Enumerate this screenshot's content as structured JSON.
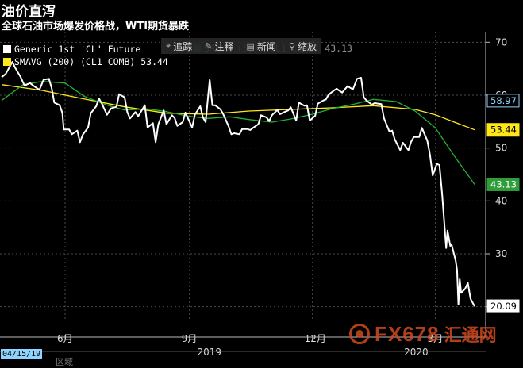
{
  "header": {
    "title": "油价直泻",
    "subtitle": "全球石油市场爆发价格战，WTI期货暴跌"
  },
  "toolbar": {
    "items": [
      {
        "icon": "crosshair-icon",
        "glyph": "⌖",
        "label": "追踪"
      },
      {
        "icon": "annotate-icon",
        "glyph": "✎",
        "label": "注释"
      },
      {
        "icon": "news-icon",
        "glyph": "▤",
        "label": "新闻"
      },
      {
        "icon": "zoom-icon",
        "glyph": "⚲",
        "label": "缩放"
      }
    ]
  },
  "legend": {
    "series1": "Generic 1st 'CL' Future",
    "series2": "SMAVG (200) (CL1 COMB) 53.44",
    "series3": "SMAVG (50) (CL1 COMB) 43.13"
  },
  "date_tag": "04/15/19",
  "bottom_text": "区域",
  "watermark": {
    "text": "FX678",
    "cn": "汇通网"
  },
  "colors": {
    "price": "#ffffff",
    "sma50": "#22b033",
    "sma200": "#ffe81a",
    "tag_price_bg": "#8fd4ff",
    "tag_yellow_bg": "#ffe81a",
    "tag_green_bg": "#2f9e3a",
    "tag_white_bg": "#ffffff",
    "grid": "#4a4a4a"
  },
  "chart_data": {
    "type": "line",
    "title": "油价直泻",
    "subtitle": "全球石油市场爆发价格战，WTI期货暴跌",
    "ylim": [
      18,
      72
    ],
    "y_ticks": [
      20,
      30,
      40,
      50,
      60,
      70
    ],
    "x_range": [
      "2019-04-15",
      "2020-03-20"
    ],
    "x_ticks": [
      {
        "date": "2019-06-01",
        "label": "6月"
      },
      {
        "date": "2019-09-01",
        "label": "9月"
      },
      {
        "date": "2019-12-01",
        "label": "12月"
      },
      {
        "date": "2020-03-01",
        "label": "3月"
      }
    ],
    "year_labels": [
      {
        "date": "2019-09-15",
        "label": "2019"
      },
      {
        "date": "2020-02-15",
        "label": "2020"
      }
    ],
    "grid": true,
    "last_value_labels": [
      {
        "value": 58.97,
        "text": "58.97",
        "style": "ref"
      },
      {
        "value": 53.44,
        "text": "53.44",
        "style": "yellow"
      },
      {
        "value": 43.13,
        "text": "43.13",
        "style": "green"
      },
      {
        "value": 20.09,
        "text": "20.09",
        "style": "white"
      }
    ],
    "series": [
      {
        "name": "Generic 1st 'CL' Future",
        "color": "#ffffff",
        "points": [
          [
            "2019-04-15",
            63.4
          ],
          [
            "2019-04-18",
            64.0
          ],
          [
            "2019-04-23",
            66.3
          ],
          [
            "2019-04-25",
            65.2
          ],
          [
            "2019-04-29",
            63.5
          ],
          [
            "2019-05-02",
            61.8
          ],
          [
            "2019-05-06",
            62.3
          ],
          [
            "2019-05-09",
            61.7
          ],
          [
            "2019-05-13",
            61.0
          ],
          [
            "2019-05-16",
            62.9
          ],
          [
            "2019-05-20",
            63.1
          ],
          [
            "2019-05-22",
            61.4
          ],
          [
            "2019-05-24",
            58.6
          ],
          [
            "2019-05-28",
            58.1
          ],
          [
            "2019-05-30",
            56.6
          ],
          [
            "2019-05-31",
            53.5
          ],
          [
            "2019-06-04",
            53.5
          ],
          [
            "2019-06-06",
            52.6
          ],
          [
            "2019-06-10",
            53.3
          ],
          [
            "2019-06-12",
            51.1
          ],
          [
            "2019-06-14",
            52.5
          ],
          [
            "2019-06-18",
            53.9
          ],
          [
            "2019-06-20",
            56.6
          ],
          [
            "2019-06-24",
            57.9
          ],
          [
            "2019-06-26",
            59.4
          ],
          [
            "2019-06-28",
            58.5
          ],
          [
            "2019-07-02",
            56.3
          ],
          [
            "2019-07-05",
            57.5
          ],
          [
            "2019-07-09",
            57.8
          ],
          [
            "2019-07-11",
            60.2
          ],
          [
            "2019-07-15",
            59.6
          ],
          [
            "2019-07-17",
            56.8
          ],
          [
            "2019-07-19",
            55.6
          ],
          [
            "2019-07-23",
            56.8
          ],
          [
            "2019-07-25",
            56.0
          ],
          [
            "2019-07-30",
            58.1
          ],
          [
            "2019-08-01",
            53.9
          ],
          [
            "2019-08-05",
            54.7
          ],
          [
            "2019-08-07",
            51.1
          ],
          [
            "2019-08-09",
            54.5
          ],
          [
            "2019-08-13",
            57.1
          ],
          [
            "2019-08-15",
            54.5
          ],
          [
            "2019-08-19",
            56.2
          ],
          [
            "2019-08-21",
            55.7
          ],
          [
            "2019-08-23",
            54.2
          ],
          [
            "2019-08-27",
            54.9
          ],
          [
            "2019-08-29",
            56.7
          ],
          [
            "2019-09-03",
            53.9
          ],
          [
            "2019-09-05",
            56.3
          ],
          [
            "2019-09-09",
            57.9
          ],
          [
            "2019-09-11",
            55.8
          ],
          [
            "2019-09-13",
            54.9
          ],
          [
            "2019-09-16",
            62.9
          ],
          [
            "2019-09-18",
            58.1
          ],
          [
            "2019-09-20",
            58.1
          ],
          [
            "2019-09-24",
            57.3
          ],
          [
            "2019-09-26",
            56.4
          ],
          [
            "2019-09-30",
            54.1
          ],
          [
            "2019-10-02",
            52.6
          ],
          [
            "2019-10-04",
            52.8
          ],
          [
            "2019-10-08",
            52.6
          ],
          [
            "2019-10-10",
            53.6
          ],
          [
            "2019-10-14",
            53.6
          ],
          [
            "2019-10-16",
            53.4
          ],
          [
            "2019-10-18",
            53.8
          ],
          [
            "2019-10-22",
            54.5
          ],
          [
            "2019-10-24",
            56.2
          ],
          [
            "2019-10-28",
            55.8
          ],
          [
            "2019-10-30",
            55.1
          ],
          [
            "2019-11-01",
            56.2
          ],
          [
            "2019-11-05",
            57.2
          ],
          [
            "2019-11-07",
            56.4
          ],
          [
            "2019-11-11",
            56.9
          ],
          [
            "2019-11-13",
            57.1
          ],
          [
            "2019-11-15",
            57.7
          ],
          [
            "2019-11-19",
            55.2
          ],
          [
            "2019-11-21",
            58.6
          ],
          [
            "2019-11-25",
            58.0
          ],
          [
            "2019-11-27",
            58.1
          ],
          [
            "2019-11-29",
            55.2
          ],
          [
            "2019-12-03",
            56.1
          ],
          [
            "2019-12-05",
            58.4
          ],
          [
            "2019-12-09",
            59.0
          ],
          [
            "2019-12-11",
            59.2
          ],
          [
            "2019-12-13",
            60.1
          ],
          [
            "2019-12-17",
            60.9
          ],
          [
            "2019-12-19",
            61.2
          ],
          [
            "2019-12-23",
            60.5
          ],
          [
            "2019-12-27",
            61.7
          ],
          [
            "2019-12-31",
            61.1
          ],
          [
            "2020-01-03",
            63.1
          ],
          [
            "2020-01-06",
            63.3
          ],
          [
            "2020-01-08",
            59.6
          ],
          [
            "2020-01-10",
            59.0
          ],
          [
            "2020-01-14",
            58.2
          ],
          [
            "2020-01-16",
            58.5
          ],
          [
            "2020-01-21",
            58.3
          ],
          [
            "2020-01-23",
            55.6
          ],
          [
            "2020-01-27",
            53.1
          ],
          [
            "2020-01-29",
            53.3
          ],
          [
            "2020-01-31",
            51.6
          ],
          [
            "2020-02-04",
            49.6
          ],
          [
            "2020-02-06",
            51.0
          ],
          [
            "2020-02-10",
            49.6
          ],
          [
            "2020-02-12",
            51.2
          ],
          [
            "2020-02-14",
            52.1
          ],
          [
            "2020-02-18",
            52.1
          ],
          [
            "2020-02-20",
            53.8
          ],
          [
            "2020-02-24",
            51.4
          ],
          [
            "2020-02-26",
            48.7
          ],
          [
            "2020-02-28",
            44.8
          ],
          [
            "2020-03-02",
            47.0
          ],
          [
            "2020-03-04",
            46.8
          ],
          [
            "2020-03-06",
            41.3
          ],
          [
            "2020-03-09",
            31.1
          ],
          [
            "2020-03-10",
            34.4
          ],
          [
            "2020-03-12",
            31.5
          ],
          [
            "2020-03-13",
            31.7
          ],
          [
            "2020-03-16",
            28.7
          ],
          [
            "2020-03-17",
            26.9
          ],
          [
            "2020-03-18",
            20.4
          ],
          [
            "2020-03-19",
            25.2
          ],
          [
            "2020-03-20",
            22.6
          ],
          [
            "2020-03-23",
            23.4
          ],
          [
            "2020-03-25",
            24.5
          ],
          [
            "2020-03-27",
            21.5
          ],
          [
            "2020-03-30",
            20.09
          ]
        ]
      },
      {
        "name": "SMAVG (50) (CL1 COMB)",
        "color": "#22b033",
        "points": [
          [
            "2019-04-15",
            59.0
          ],
          [
            "2019-05-01",
            62.0
          ],
          [
            "2019-05-15",
            62.6
          ],
          [
            "2019-06-01",
            62.3
          ],
          [
            "2019-06-15",
            59.8
          ],
          [
            "2019-07-01",
            58.2
          ],
          [
            "2019-07-15",
            57.2
          ],
          [
            "2019-08-01",
            57.4
          ],
          [
            "2019-08-15",
            56.9
          ],
          [
            "2019-09-01",
            56.0
          ],
          [
            "2019-09-15",
            55.6
          ],
          [
            "2019-10-01",
            55.9
          ],
          [
            "2019-10-15",
            55.4
          ],
          [
            "2019-11-01",
            54.9
          ],
          [
            "2019-11-15",
            55.5
          ],
          [
            "2019-12-01",
            56.4
          ],
          [
            "2019-12-15",
            57.4
          ],
          [
            "2020-01-01",
            58.3
          ],
          [
            "2020-01-15",
            59.2
          ],
          [
            "2020-02-01",
            58.8
          ],
          [
            "2020-02-15",
            57.0
          ],
          [
            "2020-03-01",
            53.8
          ],
          [
            "2020-03-15",
            48.5
          ],
          [
            "2020-03-30",
            43.13
          ]
        ]
      },
      {
        "name": "SMAVG (200) (CL1 COMB)",
        "color": "#ffe81a",
        "points": [
          [
            "2019-04-15",
            62.0
          ],
          [
            "2019-05-15",
            60.9
          ],
          [
            "2019-06-15",
            59.3
          ],
          [
            "2019-07-15",
            57.8
          ],
          [
            "2019-08-15",
            56.6
          ],
          [
            "2019-09-15",
            56.4
          ],
          [
            "2019-10-15",
            57.0
          ],
          [
            "2019-11-15",
            57.3
          ],
          [
            "2019-12-15",
            57.6
          ],
          [
            "2020-01-15",
            58.0
          ],
          [
            "2020-02-15",
            57.3
          ],
          [
            "2020-03-01",
            56.3
          ],
          [
            "2020-03-15",
            54.9
          ],
          [
            "2020-03-30",
            53.44
          ]
        ]
      }
    ]
  }
}
